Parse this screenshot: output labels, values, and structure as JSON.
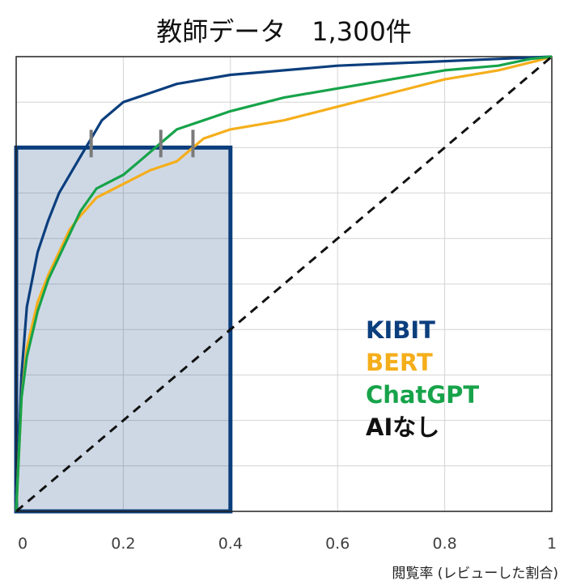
{
  "chart_data": {
    "type": "line",
    "title": "教師データ　1,300件",
    "xlabel": "閲覧率 (レビューした割合)",
    "ylabel": "",
    "xlim": [
      0,
      1
    ],
    "ylim": [
      0,
      1
    ],
    "x_ticks": [
      "0",
      "0.2",
      "0.4",
      "0.6",
      "0.8",
      "1"
    ],
    "grid": true,
    "legend_position": "bottom-right",
    "series": [
      {
        "name": "KIBIT",
        "color": "#0b3e7d",
        "x": [
          0,
          0.01,
          0.02,
          0.04,
          0.06,
          0.08,
          0.1,
          0.12,
          0.14,
          0.16,
          0.18,
          0.2,
          0.25,
          0.3,
          0.35,
          0.4,
          0.5,
          0.6,
          0.7,
          0.8,
          0.9,
          1.0
        ],
        "y": [
          0,
          0.3,
          0.45,
          0.57,
          0.64,
          0.7,
          0.74,
          0.78,
          0.82,
          0.86,
          0.88,
          0.9,
          0.92,
          0.94,
          0.95,
          0.96,
          0.97,
          0.98,
          0.985,
          0.99,
          0.995,
          1.0
        ]
      },
      {
        "name": "BERT",
        "color": "#f5ae1b",
        "x": [
          0,
          0.01,
          0.02,
          0.04,
          0.06,
          0.08,
          0.1,
          0.12,
          0.15,
          0.2,
          0.25,
          0.3,
          0.33,
          0.35,
          0.4,
          0.5,
          0.6,
          0.7,
          0.8,
          0.9,
          0.97,
          1.0
        ],
        "y": [
          0,
          0.25,
          0.36,
          0.46,
          0.52,
          0.57,
          0.62,
          0.65,
          0.69,
          0.72,
          0.75,
          0.77,
          0.8,
          0.82,
          0.84,
          0.86,
          0.89,
          0.92,
          0.95,
          0.97,
          0.99,
          1.0
        ]
      },
      {
        "name": "ChatGPT",
        "color": "#17a34a",
        "x": [
          0,
          0.01,
          0.02,
          0.04,
          0.06,
          0.08,
          0.1,
          0.12,
          0.15,
          0.2,
          0.23,
          0.26,
          0.3,
          0.35,
          0.4,
          0.5,
          0.6,
          0.7,
          0.8,
          0.9,
          0.96,
          1.0
        ],
        "y": [
          0,
          0.25,
          0.34,
          0.44,
          0.51,
          0.56,
          0.61,
          0.66,
          0.71,
          0.74,
          0.77,
          0.8,
          0.84,
          0.86,
          0.88,
          0.91,
          0.93,
          0.95,
          0.97,
          0.98,
          0.995,
          1.0
        ]
      },
      {
        "name": "AIなし",
        "color": "#111111",
        "dashed": true,
        "x": [
          0,
          1
        ],
        "y": [
          0,
          1
        ]
      }
    ],
    "highlight_box": {
      "x": [
        0,
        0.4
      ],
      "y": [
        0,
        0.8
      ]
    },
    "markers_at_y": 0.8,
    "marker_x": [
      0.14,
      0.27,
      0.33
    ]
  }
}
